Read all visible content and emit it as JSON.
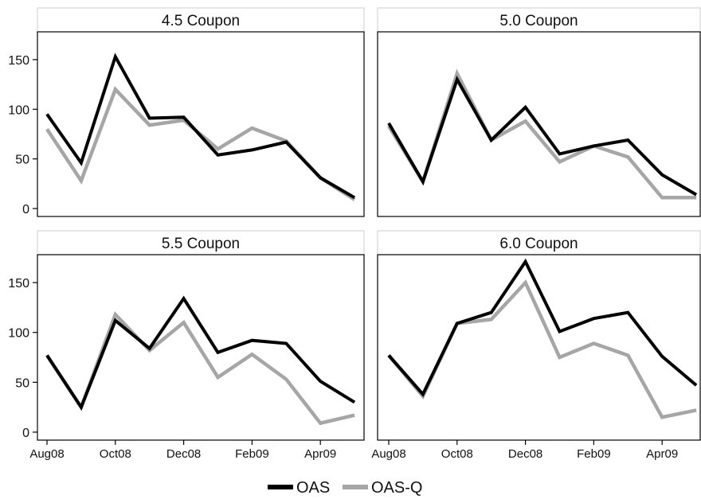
{
  "chart_data": {
    "type": "line",
    "x": [
      "Aug08",
      "Sep08",
      "Oct08",
      "Nov08",
      "Dec08",
      "Jan09",
      "Feb09",
      "Mar09",
      "Apr09",
      "May09"
    ],
    "x_tick_labels": [
      "Aug08",
      "Oct08",
      "Dec08",
      "Feb09",
      "Apr09"
    ],
    "y_ticks": [
      0,
      50,
      100,
      150
    ],
    "ylim": [
      -8,
      178
    ],
    "colors": {
      "OAS": "#000000",
      "OAS-Q": "#a6a6a6"
    },
    "legend": {
      "placement": "bottom-center",
      "entries": [
        "OAS",
        "OAS-Q"
      ]
    },
    "panels": [
      {
        "title": "4.5 Coupon",
        "series": [
          {
            "name": "OAS",
            "values": [
              95,
              46,
              153,
              91,
              92,
              54,
              59,
              67,
              31,
              11
            ]
          },
          {
            "name": "OAS-Q",
            "values": [
              80,
              28,
              120,
              84,
              89,
              60,
              81,
              68,
              31,
              9
            ]
          }
        ]
      },
      {
        "title": "5.0 Coupon",
        "series": [
          {
            "name": "OAS",
            "values": [
              86,
              27,
              130,
              69,
              102,
              55,
              63,
              69,
              34,
              14
            ]
          },
          {
            "name": "OAS-Q",
            "values": [
              83,
              27,
              136,
              69,
              88,
              47,
              63,
              52,
              11,
              11
            ]
          }
        ]
      },
      {
        "title": "5.5 Coupon",
        "series": [
          {
            "name": "OAS",
            "values": [
              77,
              25,
              112,
              84,
              134,
              80,
              92,
              89,
              51,
              30
            ]
          },
          {
            "name": "OAS-Q",
            "values": [
              77,
              25,
              118,
              82,
              110,
              55,
              78,
              53,
              9,
              17
            ]
          }
        ]
      },
      {
        "title": "6.0 Coupon",
        "series": [
          {
            "name": "OAS",
            "values": [
              77,
              38,
              109,
              120,
              171,
              101,
              114,
              120,
              76,
              47
            ]
          },
          {
            "name": "OAS-Q",
            "values": [
              77,
              36,
              109,
              113,
              150,
              75,
              89,
              77,
              15,
              22
            ]
          }
        ]
      }
    ]
  }
}
